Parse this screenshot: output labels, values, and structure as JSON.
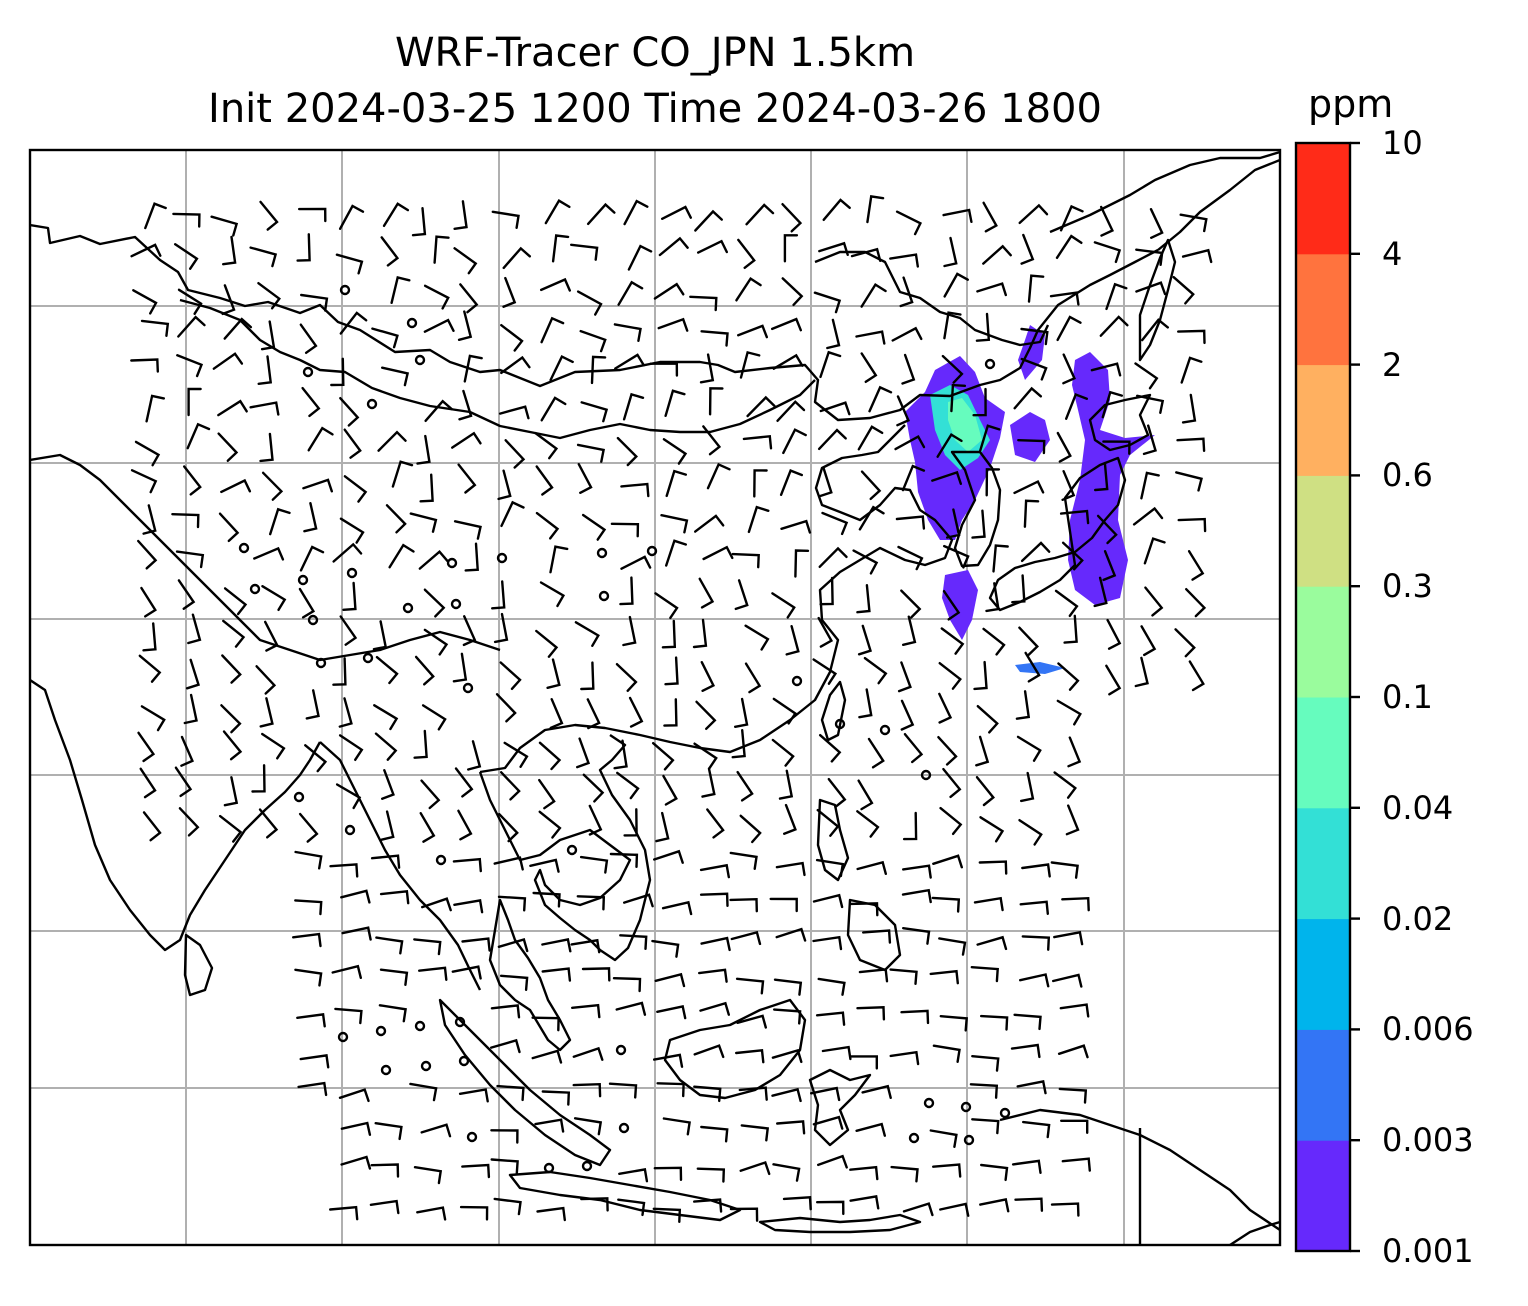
{
  "title": {
    "line1": "WRF-Tracer CO_JPN 1.5km",
    "line2": "Init 2024-03-25 1200 Time 2024-03-26 1800"
  },
  "colorbar": {
    "unit": "ppm",
    "levels": [
      "0.001",
      "0.003",
      "0.006",
      "0.02",
      "0.04",
      "0.1",
      "0.3",
      "0.6",
      "2",
      "4",
      "10"
    ],
    "colors": [
      "#6629fc",
      "#3375f5",
      "#00b4ec",
      "#33e0d6",
      "#66fcbe",
      "#9afc9d",
      "#cfe083",
      "#ffb060",
      "#ff733e",
      "#ff2b18"
    ]
  },
  "map": {
    "colors": {
      "coast": "#000000",
      "grid": "#b0b0b0",
      "frame": "#000000",
      "barb": "#000000"
    },
    "plume_colors": {
      "low": "#6629fc",
      "mid": "#3375f5",
      "cyan": "#33e0d6",
      "green": "#66fcbe"
    }
  }
}
